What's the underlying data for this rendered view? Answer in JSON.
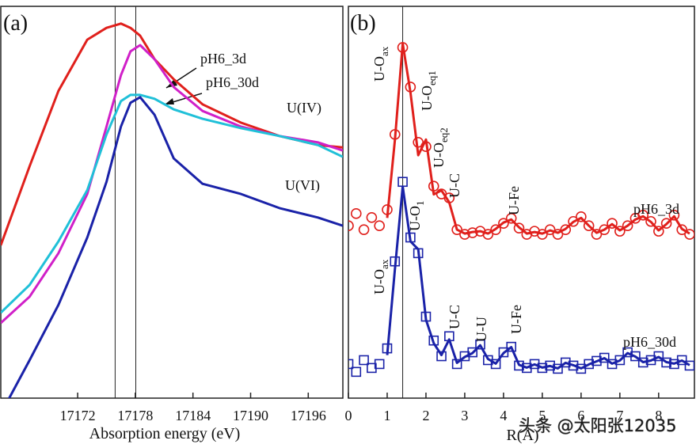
{
  "chart_data": [
    {
      "type": "line",
      "title": "(a)",
      "xlabel": "Absorption energy (eV)",
      "x": [
        17164,
        17167,
        17170,
        17173,
        17175,
        17176.5,
        17177.5,
        17178.5,
        17180,
        17182,
        17185,
        17189,
        17193,
        17197,
        17199.6
      ],
      "xlim": [
        17164,
        17199.6
      ],
      "ylim": [
        0,
        100
      ],
      "xticks": [
        17172,
        17178,
        17184,
        17190,
        17196
      ],
      "vlines": [
        17175.9,
        17178.05
      ],
      "series": [
        {
          "name": "U(IV)",
          "color": "#e0201c",
          "values": [
            39.0,
            59.2,
            78.4,
            91.5,
            94.5,
            95.6,
            94.5,
            92.5,
            86.5,
            81.4,
            75.0,
            70.3,
            66.9,
            64.6,
            64.0
          ]
        },
        {
          "name": "pH6_3d",
          "color": "#d020c8",
          "values": [
            19.2,
            25.9,
            37.0,
            52.1,
            69.3,
            82.4,
            88.5,
            90.1,
            86.5,
            79.4,
            73.3,
            69.3,
            66.9,
            65.3,
            63.2
          ]
        },
        {
          "name": "pH6_30d",
          "color": "#20c0d8",
          "values": [
            21.8,
            28.9,
            40.0,
            53.1,
            67.3,
            75.8,
            77.4,
            77.4,
            76.4,
            73.7,
            71.3,
            68.9,
            66.9,
            64.6,
            61.6
          ]
        },
        {
          "name": "U(VI)",
          "color": "#1a22a8",
          "values": [
            -4,
            9.7,
            23.8,
            41.0,
            55.2,
            69.3,
            75.4,
            76.8,
            72.3,
            61.2,
            54.7,
            52.1,
            48.5,
            46.1,
            44.0
          ]
        }
      ]
    },
    {
      "type": "line",
      "title": "(b)",
      "xlabel": "R(Å)",
      "watermark": "头条 @太阳张12035",
      "x": [
        0,
        0.2,
        0.4,
        0.6,
        0.8,
        1,
        1.2,
        1.4,
        1.6,
        1.8,
        2,
        2.2,
        2.4,
        2.6,
        2.8,
        3,
        3.2,
        3.4,
        3.6,
        3.8,
        4,
        4.2,
        4.4,
        4.6,
        4.8,
        5,
        5.2,
        5.4,
        5.6,
        5.8,
        6,
        6.2,
        6.4,
        6.6,
        6.8,
        7,
        7.2,
        7.4,
        7.6,
        7.8,
        8,
        8.2,
        8.4,
        8.6,
        8.8
      ],
      "xlim": [
        0,
        8.8
      ],
      "ylim": [
        0,
        100
      ],
      "xticks": [
        0,
        1,
        2,
        3,
        4,
        5,
        6,
        7,
        8
      ],
      "vlines": [
        1.4
      ],
      "series": [
        {
          "name": "pH6_3d",
          "color": "#e0201c",
          "marker": "circle",
          "values": [
            44.0,
            47.1,
            43.0,
            46.1,
            44.0,
            48.1,
            67.3,
            89.5,
            79.4,
            65.3,
            64.2,
            54.1,
            52.1,
            51.1,
            43.0,
            41.8,
            42.2,
            42.6,
            41.8,
            43.0,
            44.6,
            45.9,
            43.4,
            41.8,
            42.6,
            41.8,
            43.0,
            41.8,
            43.0,
            45.1,
            46.3,
            44.0,
            41.8,
            43.0,
            44.6,
            42.6,
            44.0,
            45.9,
            46.7,
            45.1,
            42.6,
            44.6,
            46.7,
            43.0,
            41.8
          ],
          "fit": [
            null,
            null,
            null,
            null,
            null,
            46.0,
            66.0,
            90.5,
            78.0,
            62.0,
            66.0,
            52.0,
            53.0,
            50.0,
            43.0,
            42.0,
            42.4,
            42.6,
            42.0,
            43.2,
            44.8,
            45.6,
            43.6,
            42.0,
            42.4,
            42.0,
            42.8,
            42.2,
            43.2,
            45.0,
            46.0,
            44.0,
            42.2,
            43.0,
            44.4,
            42.8,
            44.0,
            45.6,
            46.4,
            45.0,
            42.8,
            44.4,
            46.4,
            43.2,
            42.0
          ]
        },
        {
          "name": "pH6_30d",
          "color": "#1a22a8",
          "marker": "square",
          "values": [
            8.7,
            6.7,
            9.7,
            7.7,
            8.7,
            12.7,
            34.9,
            55.2,
            41.0,
            37.0,
            20.8,
            14.7,
            10.7,
            15.8,
            8.7,
            10.7,
            11.7,
            13.7,
            9.7,
            8.7,
            11.7,
            13.1,
            8.3,
            7.7,
            8.7,
            7.7,
            8.3,
            7.5,
            9.1,
            8.3,
            7.5,
            8.7,
            9.5,
            10.3,
            8.7,
            9.7,
            11.7,
            10.7,
            9.1,
            9.7,
            10.7,
            9.1,
            8.7,
            9.7,
            8.3
          ],
          "fit": [
            null,
            null,
            null,
            null,
            null,
            11.0,
            33.0,
            54.0,
            40.0,
            38.0,
            20.0,
            14.0,
            11.0,
            15.0,
            9.0,
            10.5,
            11.5,
            13.5,
            10.0,
            8.8,
            11.5,
            13.0,
            8.5,
            7.8,
            8.6,
            7.8,
            8.2,
            7.6,
            9.0,
            8.4,
            7.6,
            8.6,
            9.4,
            10.2,
            8.8,
            9.6,
            11.5,
            10.6,
            9.2,
            9.6,
            10.5,
            9.2,
            8.8,
            9.6,
            8.4
          ]
        }
      ],
      "annotations": [
        {
          "text": "U-O",
          "sub": "ax"
        },
        {
          "text": "U-O",
          "sub": "eq1"
        },
        {
          "text": "U-O",
          "sub": "eq2"
        },
        {
          "text": "U-C"
        },
        {
          "text": "U-Fe"
        },
        {
          "text": "U-O",
          "sub": "ax"
        },
        {
          "text": "U-O",
          "sub": "1"
        },
        {
          "text": "U-C"
        },
        {
          "text": "U-U"
        },
        {
          "text": "U-Fe"
        }
      ]
    }
  ]
}
